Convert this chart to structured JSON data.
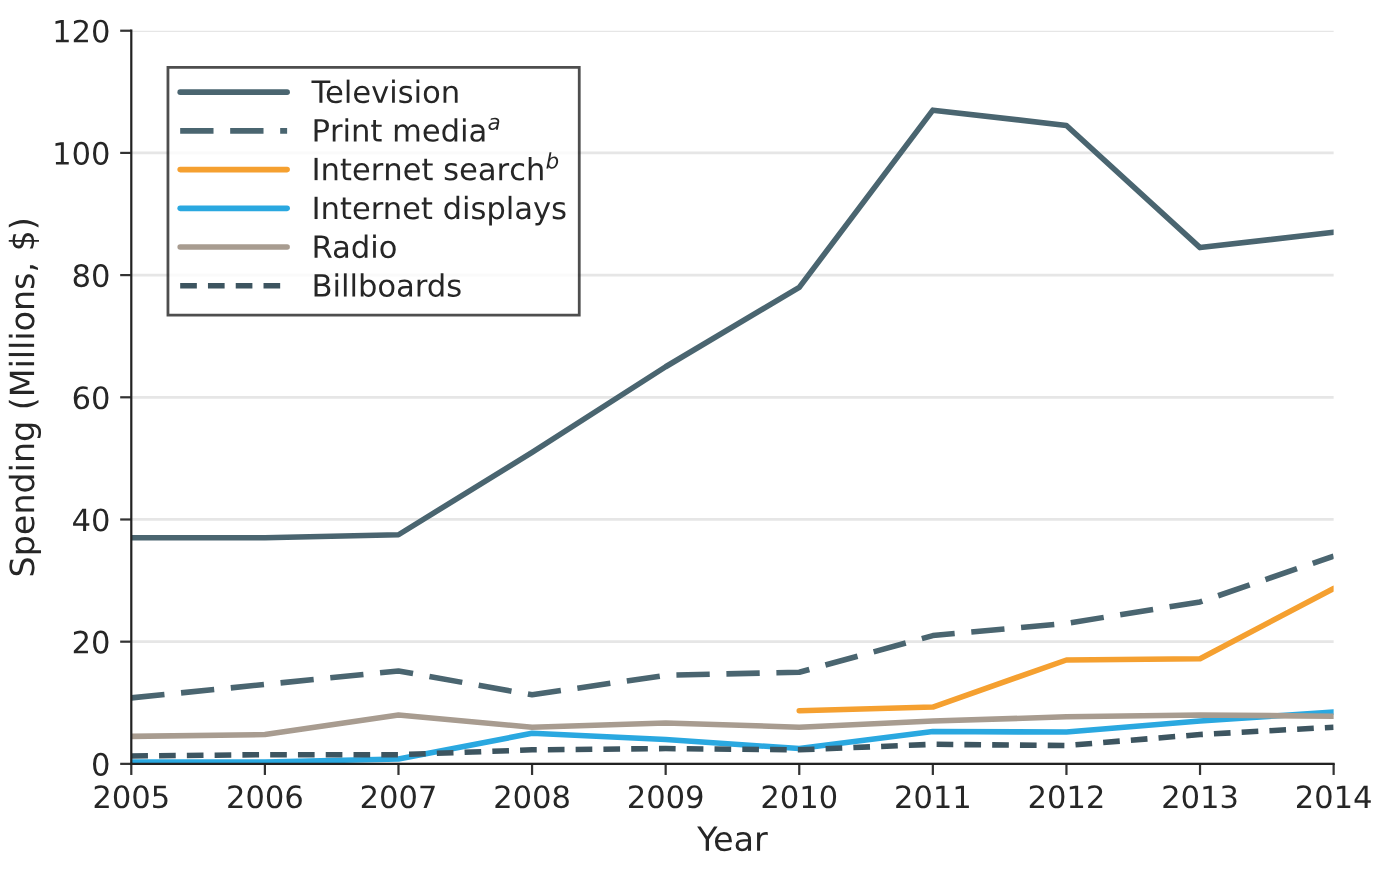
{
  "chart_data": {
    "type": "line",
    "xlabel": "Year",
    "ylabel": "Spending (Millions, $)",
    "x": [
      2005,
      2006,
      2007,
      2008,
      2009,
      2010,
      2011,
      2012,
      2013,
      2014
    ],
    "series": [
      {
        "name": "Television",
        "color": "#4a6570",
        "line_style": "solid",
        "values": [
          37,
          37,
          37.5,
          51,
          65,
          78,
          107,
          104.5,
          84.5,
          87
        ]
      },
      {
        "name": "Print media$^{a}$",
        "color": "#4a6570",
        "line_style": "dashed",
        "values": [
          10.8,
          13,
          15.2,
          11.3,
          14.5,
          15,
          21,
          23,
          26.5,
          34
        ]
      },
      {
        "name": "Internet search$^{b}$",
        "color": "#f5a030",
        "line_style": "solid",
        "values": [
          null,
          null,
          null,
          null,
          null,
          8.7,
          9.3,
          17,
          17.2,
          28.7
        ]
      },
      {
        "name": "Internet displays",
        "color": "#2aa8e0",
        "line_style": "solid",
        "values": [
          0.3,
          0.3,
          0.8,
          5,
          4,
          2.5,
          5.3,
          5.2,
          7,
          8.5
        ]
      },
      {
        "name": "Radio",
        "color": "#a89c90",
        "line_style": "solid",
        "values": [
          4.5,
          4.8,
          8,
          6,
          6.7,
          6,
          7,
          7.7,
          8,
          7.8
        ]
      },
      {
        "name": "Billboards",
        "color": "#3d5560",
        "line_style": "dotted",
        "values": [
          1.3,
          1.5,
          1.5,
          2.3,
          2.5,
          2.3,
          3.2,
          3,
          4.8,
          6
        ]
      }
    ],
    "xlim": [
      2005,
      2014
    ],
    "xticks": [
      2005,
      2006,
      2007,
      2008,
      2009,
      2010,
      2011,
      2012,
      2013,
      2014
    ],
    "ylim": [
      0,
      120
    ],
    "yticks": [
      0,
      20,
      40,
      60,
      80,
      100,
      120
    ],
    "grid": "y",
    "legend": "top left",
    "marker": "none"
  }
}
